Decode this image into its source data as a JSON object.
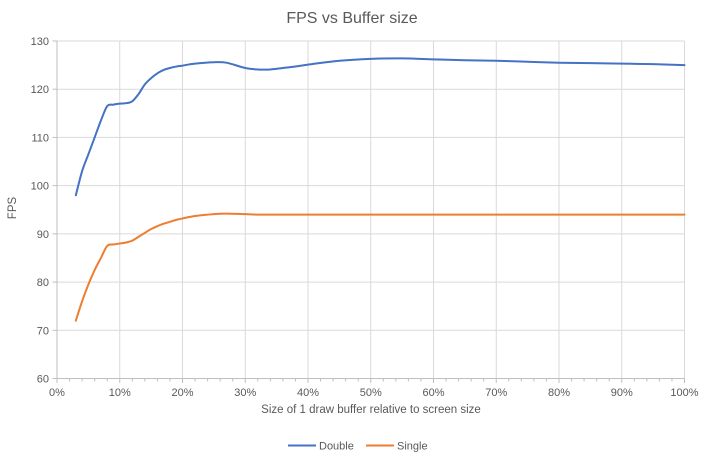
{
  "colors": {
    "background": "#FFFFFF",
    "gridline": "#D9D9D9",
    "axis_line": "#BFBFBF",
    "text": "#595959",
    "series_double": "#4472C4",
    "series_single": "#ED7D31"
  },
  "chart_data": {
    "type": "line",
    "title": "FPS vs Buffer size",
    "xlabel": "Size of 1 draw buffer relative to screen size",
    "ylabel": "FPS",
    "xlim": [
      0,
      100
    ],
    "ylim": [
      60,
      130
    ],
    "grid": true,
    "smooth": true,
    "legend_position": "bottom",
    "x_minor_tick_step": 2,
    "x_ticks": [
      {
        "v": 0,
        "label": "0%"
      },
      {
        "v": 10,
        "label": "10%"
      },
      {
        "v": 20,
        "label": "20%"
      },
      {
        "v": 30,
        "label": "30%"
      },
      {
        "v": 40,
        "label": "40%"
      },
      {
        "v": 50,
        "label": "50%"
      },
      {
        "v": 60,
        "label": "60%"
      },
      {
        "v": 70,
        "label": "70%"
      },
      {
        "v": 80,
        "label": "80%"
      },
      {
        "v": 90,
        "label": "90%"
      },
      {
        "v": 100,
        "label": "100%"
      }
    ],
    "y_ticks": [
      {
        "v": 60,
        "label": "60"
      },
      {
        "v": 70,
        "label": "70"
      },
      {
        "v": 80,
        "label": "80"
      },
      {
        "v": 90,
        "label": "90"
      },
      {
        "v": 100,
        "label": "100"
      },
      {
        "v": 110,
        "label": "110"
      },
      {
        "v": 120,
        "label": "120"
      },
      {
        "v": 130,
        "label": "130"
      }
    ],
    "series": [
      {
        "name": "Double",
        "color": "#4472C4",
        "x": [
          3,
          4,
          5,
          6,
          7,
          8,
          9,
          10,
          11,
          12,
          13,
          14,
          15,
          16,
          17,
          18,
          19,
          20,
          22,
          25,
          27,
          30,
          32,
          34,
          36,
          38,
          40,
          45,
          50,
          55,
          60,
          65,
          70,
          75,
          80,
          85,
          90,
          95,
          100
        ],
        "y": [
          98,
          103,
          106.5,
          110,
          113.5,
          116.5,
          116.8,
          117,
          117.1,
          117.5,
          119,
          121,
          122.3,
          123.3,
          124,
          124.4,
          124.7,
          124.9,
          125.3,
          125.6,
          125.5,
          124.4,
          124.1,
          124.1,
          124.4,
          124.7,
          125.1,
          125.9,
          126.3,
          126.4,
          126.2,
          126,
          125.9,
          125.7,
          125.5,
          125.4,
          125.3,
          125.2,
          125
        ]
      },
      {
        "name": "Single",
        "color": "#ED7D31",
        "x": [
          3,
          4,
          5,
          6,
          7,
          8,
          9,
          10,
          11,
          12,
          13,
          14,
          15,
          16,
          17,
          18,
          19,
          20,
          22,
          25,
          27,
          30,
          32,
          34,
          36,
          38,
          40,
          45,
          50,
          55,
          60,
          65,
          70,
          75,
          80,
          85,
          90,
          95,
          100
        ],
        "y": [
          72,
          76,
          79.5,
          82.5,
          85,
          87.5,
          87.8,
          88,
          88.2,
          88.6,
          89.4,
          90.2,
          91,
          91.6,
          92.1,
          92.5,
          92.9,
          93.2,
          93.7,
          94.1,
          94.2,
          94.1,
          94,
          94,
          94,
          94,
          94,
          94,
          94,
          94,
          94,
          94,
          94,
          94,
          94,
          94,
          94,
          94,
          94
        ]
      }
    ]
  }
}
